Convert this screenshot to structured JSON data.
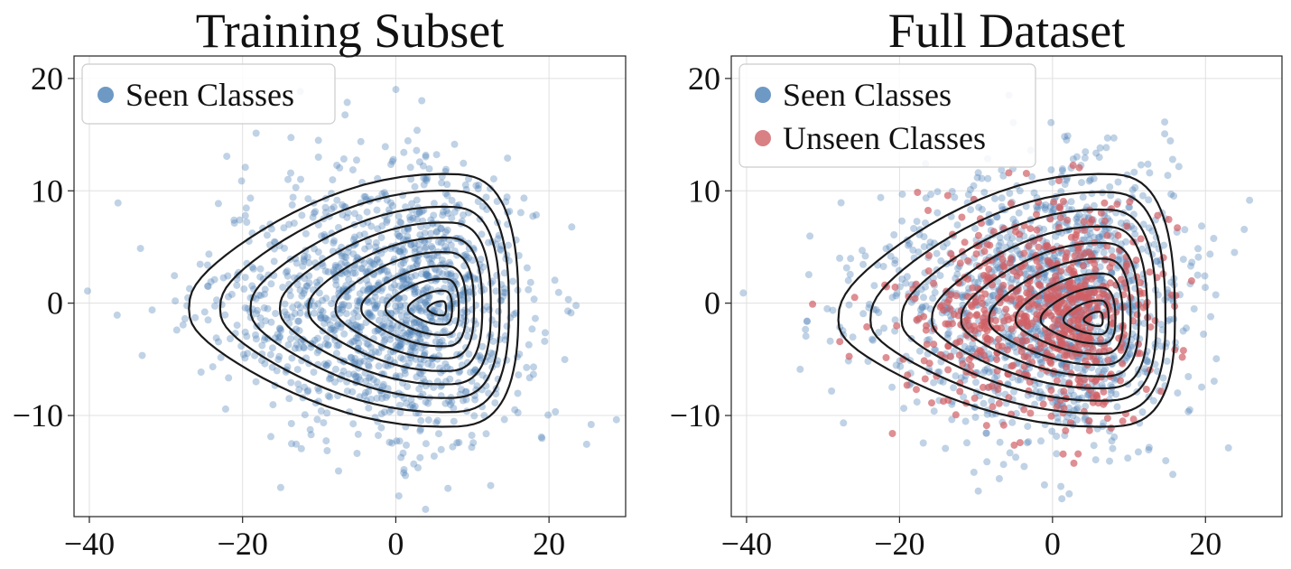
{
  "colors": {
    "seen": "#4a7fb5",
    "unseen": "#d06065",
    "contour": "#1a1a1a",
    "grid": "#e0e0e0",
    "axes": "#222222"
  },
  "chart_data": [
    {
      "type": "scatter",
      "title": "Training Subset",
      "xlabel": "",
      "ylabel": "",
      "xlim": [
        -42,
        30
      ],
      "ylim": [
        -19,
        22
      ],
      "xticks": [
        -40,
        -20,
        0,
        20
      ],
      "yticks": [
        -10,
        0,
        10,
        20
      ],
      "xtick_labels": [
        "−40",
        "−20",
        "0",
        "20"
      ],
      "ytick_labels": [
        "−10",
        "0",
        "10",
        "20"
      ],
      "grid": true,
      "legend": {
        "position": "top-left",
        "entries": [
          "Seen Classes"
        ]
      },
      "series": [
        {
          "name": "Seen Classes",
          "color": "#4a7fb5",
          "distribution": {
            "mean": [
              0,
              0
            ],
            "sd": [
              10,
              6
            ],
            "count_shown": 1400
          }
        }
      ],
      "contours": {
        "center": [
          6,
          -0.5
        ],
        "outer_levels": 10,
        "outer_extent_x": [
          -27,
          16
        ],
        "outer_extent_y": [
          -11,
          11.5
        ]
      }
    },
    {
      "type": "scatter",
      "title": "Full Dataset",
      "xlabel": "",
      "ylabel": "",
      "xlim": [
        -42,
        30
      ],
      "ylim": [
        -19,
        22
      ],
      "xticks": [
        -40,
        -20,
        0,
        20
      ],
      "yticks": [
        -10,
        0,
        10,
        20
      ],
      "xtick_labels": [
        "−40",
        "−20",
        "0",
        "20"
      ],
      "ytick_labels": [
        "−10",
        "0",
        "10",
        "20"
      ],
      "grid": true,
      "legend": {
        "position": "top-left",
        "entries": [
          "Seen Classes",
          "Unseen Classes"
        ]
      },
      "series": [
        {
          "name": "Seen Classes",
          "color": "#4a7fb5",
          "distribution": {
            "mean": [
              0,
              0
            ],
            "sd": [
              10,
              6
            ],
            "count_shown": 1400
          }
        },
        {
          "name": "Unseen Classes",
          "color": "#d06065",
          "distribution": {
            "mean": [
              0,
              -1
            ],
            "sd": [
              8,
              4.5
            ],
            "count_shown": 700
          }
        }
      ],
      "contours": {
        "center": [
          6,
          -1.5
        ],
        "outer_levels": 10,
        "outer_extent_x": [
          -28,
          16
        ],
        "outer_extent_y": [
          -11,
          11.5
        ]
      }
    }
  ]
}
